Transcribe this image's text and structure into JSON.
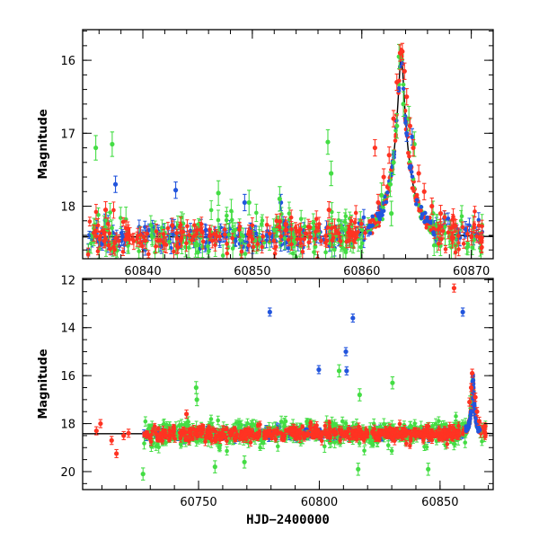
{
  "chart_data": [
    {
      "type": "scatter",
      "panel": "top",
      "xlabel": "",
      "ylabel": "Magnitude",
      "xlim": [
        60834.5,
        60872
      ],
      "ylim": [
        18.72,
        15.58
      ],
      "x_ticks": [
        60840,
        60850,
        60860,
        60870
      ],
      "y_ticks": [
        16,
        17,
        18
      ],
      "model_curve": {
        "baseline": 18.42,
        "peak_x": 60863.6,
        "peak_y": 15.95,
        "tE": 1.85,
        "u0": 0.11
      },
      "series": [
        {
          "color": "#2255dd",
          "noise_mag": 0.09,
          "err_mag": 0.08,
          "band": [
            60835,
            60871
          ],
          "points": [
            [
              60837.5,
              17.7
            ],
            [
              60843.0,
              17.78
            ],
            [
              60849.3,
              17.95
            ],
            [
              60852.6,
              17.95
            ],
            [
              60864.1,
              17.0
            ],
            [
              60864.6,
              17.05
            ]
          ]
        },
        {
          "color": "#44dd44",
          "noise_mag": 0.16,
          "err_mag": 0.12,
          "band": [
            60835,
            60871
          ],
          "points": [
            [
              60835.7,
              17.2
            ],
            [
              60837.2,
              17.15
            ],
            [
              60846.9,
              17.82
            ],
            [
              60849.7,
              17.95
            ],
            [
              60852.5,
              17.9
            ],
            [
              60856.9,
              17.12
            ],
            [
              60857.2,
              17.55
            ],
            [
              60861.8,
              17.85
            ],
            [
              60862.7,
              18.1
            ],
            [
              60866.5,
              18.1
            ],
            [
              60863.4,
              15.95
            ],
            [
              60863.8,
              16.6
            ],
            [
              60863.2,
              16.9
            ],
            [
              60862.9,
              17.4
            ],
            [
              60864.3,
              16.8
            ],
            [
              60864.8,
              17.15
            ],
            [
              60862.6,
              17.7
            ]
          ]
        },
        {
          "color": "#ff3322",
          "noise_mag": 0.12,
          "err_mag": 0.08,
          "band": [
            60835,
            60871
          ],
          "points": [
            [
              60836.6,
              18.05
            ],
            [
              60857.0,
              18.05
            ],
            [
              60859.4,
              18.4
            ],
            [
              60861.5,
              17.95
            ],
            [
              60862.0,
              17.6
            ],
            [
              60862.5,
              17.3
            ],
            [
              60862.9,
              16.8
            ],
            [
              60863.2,
              16.3
            ],
            [
              60863.5,
              15.9
            ],
            [
              60863.7,
              15.88
            ],
            [
              60863.9,
              16.15
            ],
            [
              60864.1,
              16.5
            ],
            [
              60864.4,
              16.9
            ],
            [
              60864.7,
              17.2
            ],
            [
              60865.2,
              17.55
            ],
            [
              60865.7,
              17.8
            ],
            [
              60866.4,
              18.0
            ],
            [
              60867.2,
              18.1
            ],
            [
              60861.2,
              17.2
            ]
          ]
        }
      ]
    },
    {
      "type": "scatter",
      "panel": "bottom",
      "xlabel": "HJD−2400000",
      "ylabel": "Magnitude",
      "xlim": [
        60702,
        60872
      ],
      "ylim": [
        20.75,
        11.95
      ],
      "x_ticks": [
        60750,
        60800,
        60850
      ],
      "y_ticks": [
        12,
        14,
        16,
        18,
        20
      ],
      "model_curve": {
        "baseline": 18.42,
        "peak_x": 60863.6,
        "peak_y": 16.0,
        "tE": 1.85,
        "u0": 0.11
      },
      "series": [
        {
          "color": "#2255dd",
          "noise_mag": 0.1,
          "err_mag": 0.12,
          "band": [
            60727,
            60869
          ],
          "points": [
            [
              60779.5,
              13.35
            ],
            [
              60799.8,
              15.75
            ],
            [
              60811.0,
              15.0
            ],
            [
              60811.3,
              15.8
            ],
            [
              60813.9,
              13.6
            ],
            [
              60859.4,
              13.35
            ],
            [
              60862.9,
              17.5
            ],
            [
              60863.8,
              16.7
            ]
          ]
        },
        {
          "color": "#44dd44",
          "noise_mag": 0.25,
          "err_mag": 0.18,
          "band": [
            60727,
            60869
          ],
          "points": [
            [
              60727.0,
              20.1
            ],
            [
              60749.0,
              16.5
            ],
            [
              60749.3,
              17.0
            ],
            [
              60756.8,
              19.8
            ],
            [
              60769.0,
              19.6
            ],
            [
              60808.2,
              15.8
            ],
            [
              60816.7,
              16.8
            ],
            [
              60816.1,
              19.9
            ],
            [
              60830.3,
              16.3
            ],
            [
              60845.1,
              19.9
            ],
            [
              60862.5,
              17.1
            ]
          ]
        },
        {
          "color": "#ff3322",
          "noise_mag": 0.14,
          "err_mag": 0.12,
          "band": [
            60727,
            60869
          ],
          "points": [
            [
              60707.7,
              18.3
            ],
            [
              60709.4,
              18.0
            ],
            [
              60714.0,
              18.7
            ],
            [
              60716.0,
              19.25
            ],
            [
              60719.0,
              18.5
            ],
            [
              60721.0,
              18.4
            ],
            [
              60745.0,
              17.6
            ],
            [
              60855.8,
              12.35
            ],
            [
              60862.2,
              17.1
            ],
            [
              60862.9,
              16.5
            ],
            [
              60863.3,
              15.9
            ],
            [
              60864.6,
              16.9
            ],
            [
              60865.3,
              17.5
            ],
            [
              60866.2,
              17.9
            ]
          ]
        }
      ]
    }
  ]
}
